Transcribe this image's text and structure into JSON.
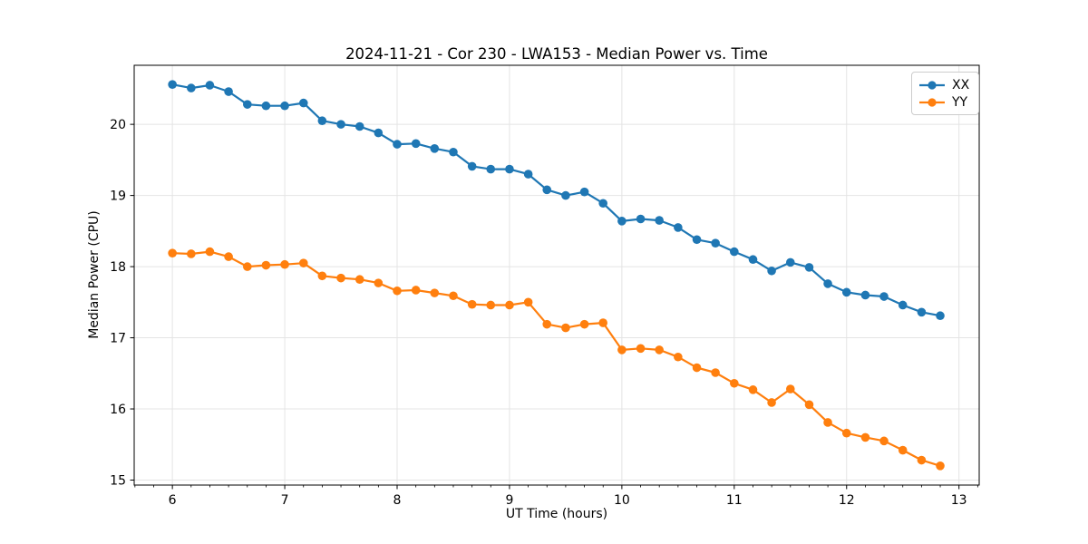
{
  "chart_data": {
    "type": "line",
    "title": "2024-11-21 - Cor 230 - LWA153 - Median Power vs. Time",
    "xlabel": "UT Time (hours)",
    "ylabel": "Median Power (CPU)",
    "x_ticks": [
      6,
      7,
      8,
      9,
      10,
      11,
      12,
      13
    ],
    "y_ticks": [
      15,
      16,
      17,
      18,
      19,
      20
    ],
    "xlim": [
      5.66,
      13.18
    ],
    "ylim": [
      14.93,
      20.83
    ],
    "x_minor_step": 0.166667,
    "grid": true,
    "legend_position": "upper right",
    "x": [
      6.0,
      6.167,
      6.333,
      6.5,
      6.667,
      6.833,
      7.0,
      7.167,
      7.333,
      7.5,
      7.667,
      7.833,
      8.0,
      8.167,
      8.333,
      8.5,
      8.667,
      8.833,
      9.0,
      9.167,
      9.333,
      9.5,
      9.667,
      9.833,
      10.0,
      10.167,
      10.333,
      10.5,
      10.667,
      10.833,
      11.0,
      11.167,
      11.333,
      11.5,
      11.667,
      11.833,
      12.0,
      12.167,
      12.333,
      12.5,
      12.667,
      12.833
    ],
    "series": [
      {
        "name": "XX",
        "color": "#1f77b4",
        "marker": "circle",
        "values": [
          20.56,
          20.51,
          20.55,
          20.46,
          20.28,
          20.26,
          20.26,
          20.3,
          20.05,
          20.0,
          19.97,
          19.88,
          19.72,
          19.73,
          19.66,
          19.61,
          19.41,
          19.37,
          19.37,
          19.3,
          19.08,
          19.0,
          19.05,
          18.89,
          18.64,
          18.67,
          18.65,
          18.55,
          18.38,
          18.33,
          18.21,
          18.1,
          17.94,
          18.06,
          17.99,
          17.76,
          17.64,
          17.6,
          17.58,
          17.46,
          17.36,
          17.31
        ]
      },
      {
        "name": "YY",
        "color": "#ff7f0e",
        "marker": "circle",
        "values": [
          18.19,
          18.18,
          18.21,
          18.14,
          18.0,
          18.02,
          18.03,
          18.05,
          17.87,
          17.84,
          17.82,
          17.77,
          17.66,
          17.67,
          17.63,
          17.59,
          17.47,
          17.46,
          17.46,
          17.5,
          17.19,
          17.14,
          17.19,
          17.21,
          16.83,
          16.85,
          16.83,
          16.73,
          16.58,
          16.51,
          16.36,
          16.27,
          16.09,
          16.28,
          16.06,
          15.81,
          15.66,
          15.6,
          15.55,
          15.42,
          15.28,
          15.2
        ]
      }
    ]
  }
}
